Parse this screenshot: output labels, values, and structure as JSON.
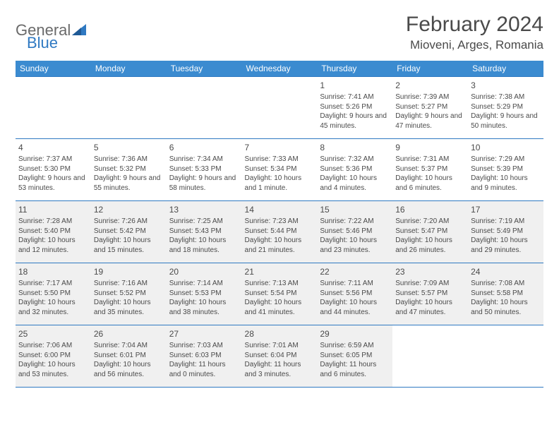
{
  "logo": {
    "text1": "General",
    "text2": "Blue"
  },
  "title": "February 2024",
  "location": "Mioveni, Arges, Romania",
  "headers": [
    "Sunday",
    "Monday",
    "Tuesday",
    "Wednesday",
    "Thursday",
    "Friday",
    "Saturday"
  ],
  "colors": {
    "header_bg": "#3b8bd0",
    "header_text": "#ffffff",
    "row_border": "#2f79c2",
    "shaded_bg": "#f0f0f0",
    "text": "#4a4a4a",
    "logo_gray": "#6a6a6a",
    "logo_blue": "#2f79c2"
  },
  "weeks": [
    [
      {
        "day": "",
        "sunrise": "",
        "sunset": "",
        "daylight": "",
        "shaded": false
      },
      {
        "day": "",
        "sunrise": "",
        "sunset": "",
        "daylight": "",
        "shaded": false
      },
      {
        "day": "",
        "sunrise": "",
        "sunset": "",
        "daylight": "",
        "shaded": false
      },
      {
        "day": "",
        "sunrise": "",
        "sunset": "",
        "daylight": "",
        "shaded": false
      },
      {
        "day": "1",
        "sunrise": "Sunrise: 7:41 AM",
        "sunset": "Sunset: 5:26 PM",
        "daylight": "Daylight: 9 hours and 45 minutes.",
        "shaded": false
      },
      {
        "day": "2",
        "sunrise": "Sunrise: 7:39 AM",
        "sunset": "Sunset: 5:27 PM",
        "daylight": "Daylight: 9 hours and 47 minutes.",
        "shaded": false
      },
      {
        "day": "3",
        "sunrise": "Sunrise: 7:38 AM",
        "sunset": "Sunset: 5:29 PM",
        "daylight": "Daylight: 9 hours and 50 minutes.",
        "shaded": false
      }
    ],
    [
      {
        "day": "4",
        "sunrise": "Sunrise: 7:37 AM",
        "sunset": "Sunset: 5:30 PM",
        "daylight": "Daylight: 9 hours and 53 minutes.",
        "shaded": false
      },
      {
        "day": "5",
        "sunrise": "Sunrise: 7:36 AM",
        "sunset": "Sunset: 5:32 PM",
        "daylight": "Daylight: 9 hours and 55 minutes.",
        "shaded": false
      },
      {
        "day": "6",
        "sunrise": "Sunrise: 7:34 AM",
        "sunset": "Sunset: 5:33 PM",
        "daylight": "Daylight: 9 hours and 58 minutes.",
        "shaded": false
      },
      {
        "day": "7",
        "sunrise": "Sunrise: 7:33 AM",
        "sunset": "Sunset: 5:34 PM",
        "daylight": "Daylight: 10 hours and 1 minute.",
        "shaded": false
      },
      {
        "day": "8",
        "sunrise": "Sunrise: 7:32 AM",
        "sunset": "Sunset: 5:36 PM",
        "daylight": "Daylight: 10 hours and 4 minutes.",
        "shaded": false
      },
      {
        "day": "9",
        "sunrise": "Sunrise: 7:31 AM",
        "sunset": "Sunset: 5:37 PM",
        "daylight": "Daylight: 10 hours and 6 minutes.",
        "shaded": false
      },
      {
        "day": "10",
        "sunrise": "Sunrise: 7:29 AM",
        "sunset": "Sunset: 5:39 PM",
        "daylight": "Daylight: 10 hours and 9 minutes.",
        "shaded": false
      }
    ],
    [
      {
        "day": "11",
        "sunrise": "Sunrise: 7:28 AM",
        "sunset": "Sunset: 5:40 PM",
        "daylight": "Daylight: 10 hours and 12 minutes.",
        "shaded": true
      },
      {
        "day": "12",
        "sunrise": "Sunrise: 7:26 AM",
        "sunset": "Sunset: 5:42 PM",
        "daylight": "Daylight: 10 hours and 15 minutes.",
        "shaded": true
      },
      {
        "day": "13",
        "sunrise": "Sunrise: 7:25 AM",
        "sunset": "Sunset: 5:43 PM",
        "daylight": "Daylight: 10 hours and 18 minutes.",
        "shaded": true
      },
      {
        "day": "14",
        "sunrise": "Sunrise: 7:23 AM",
        "sunset": "Sunset: 5:44 PM",
        "daylight": "Daylight: 10 hours and 21 minutes.",
        "shaded": true
      },
      {
        "day": "15",
        "sunrise": "Sunrise: 7:22 AM",
        "sunset": "Sunset: 5:46 PM",
        "daylight": "Daylight: 10 hours and 23 minutes.",
        "shaded": true
      },
      {
        "day": "16",
        "sunrise": "Sunrise: 7:20 AM",
        "sunset": "Sunset: 5:47 PM",
        "daylight": "Daylight: 10 hours and 26 minutes.",
        "shaded": true
      },
      {
        "day": "17",
        "sunrise": "Sunrise: 7:19 AM",
        "sunset": "Sunset: 5:49 PM",
        "daylight": "Daylight: 10 hours and 29 minutes.",
        "shaded": true
      }
    ],
    [
      {
        "day": "18",
        "sunrise": "Sunrise: 7:17 AM",
        "sunset": "Sunset: 5:50 PM",
        "daylight": "Daylight: 10 hours and 32 minutes.",
        "shaded": true
      },
      {
        "day": "19",
        "sunrise": "Sunrise: 7:16 AM",
        "sunset": "Sunset: 5:52 PM",
        "daylight": "Daylight: 10 hours and 35 minutes.",
        "shaded": true
      },
      {
        "day": "20",
        "sunrise": "Sunrise: 7:14 AM",
        "sunset": "Sunset: 5:53 PM",
        "daylight": "Daylight: 10 hours and 38 minutes.",
        "shaded": true
      },
      {
        "day": "21",
        "sunrise": "Sunrise: 7:13 AM",
        "sunset": "Sunset: 5:54 PM",
        "daylight": "Daylight: 10 hours and 41 minutes.",
        "shaded": true
      },
      {
        "day": "22",
        "sunrise": "Sunrise: 7:11 AM",
        "sunset": "Sunset: 5:56 PM",
        "daylight": "Daylight: 10 hours and 44 minutes.",
        "shaded": true
      },
      {
        "day": "23",
        "sunrise": "Sunrise: 7:09 AM",
        "sunset": "Sunset: 5:57 PM",
        "daylight": "Daylight: 10 hours and 47 minutes.",
        "shaded": true
      },
      {
        "day": "24",
        "sunrise": "Sunrise: 7:08 AM",
        "sunset": "Sunset: 5:58 PM",
        "daylight": "Daylight: 10 hours and 50 minutes.",
        "shaded": true
      }
    ],
    [
      {
        "day": "25",
        "sunrise": "Sunrise: 7:06 AM",
        "sunset": "Sunset: 6:00 PM",
        "daylight": "Daylight: 10 hours and 53 minutes.",
        "shaded": true
      },
      {
        "day": "26",
        "sunrise": "Sunrise: 7:04 AM",
        "sunset": "Sunset: 6:01 PM",
        "daylight": "Daylight: 10 hours and 56 minutes.",
        "shaded": true
      },
      {
        "day": "27",
        "sunrise": "Sunrise: 7:03 AM",
        "sunset": "Sunset: 6:03 PM",
        "daylight": "Daylight: 11 hours and 0 minutes.",
        "shaded": true
      },
      {
        "day": "28",
        "sunrise": "Sunrise: 7:01 AM",
        "sunset": "Sunset: 6:04 PM",
        "daylight": "Daylight: 11 hours and 3 minutes.",
        "shaded": true
      },
      {
        "day": "29",
        "sunrise": "Sunrise: 6:59 AM",
        "sunset": "Sunset: 6:05 PM",
        "daylight": "Daylight: 11 hours and 6 minutes.",
        "shaded": true
      },
      {
        "day": "",
        "sunrise": "",
        "sunset": "",
        "daylight": "",
        "shaded": false
      },
      {
        "day": "",
        "sunrise": "",
        "sunset": "",
        "daylight": "",
        "shaded": false
      }
    ]
  ]
}
